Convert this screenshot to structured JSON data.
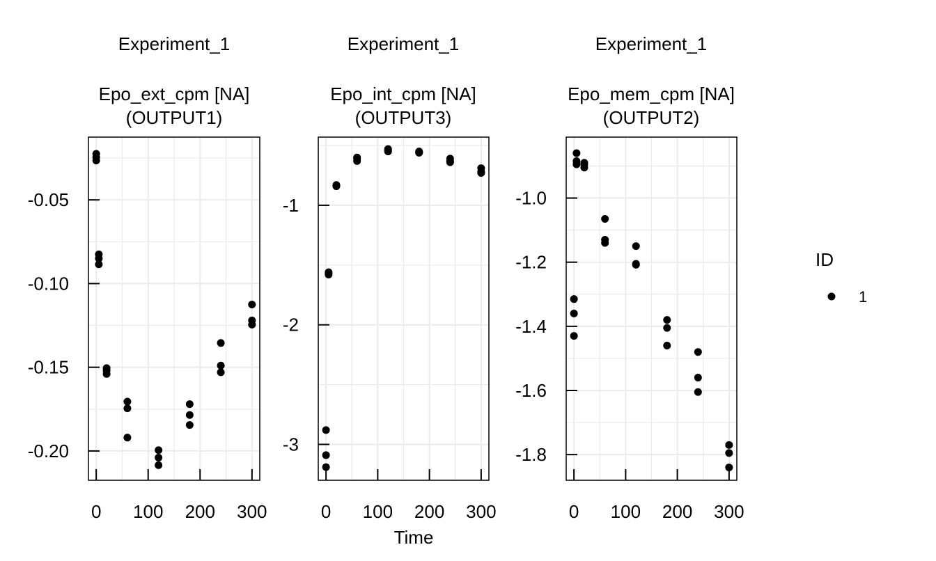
{
  "figure": {
    "xlabel": "Time",
    "legend": {
      "title": "ID",
      "entries": [
        "1"
      ],
      "placement": "right"
    }
  },
  "chart_data": [
    {
      "type": "scatter",
      "strip": "Experiment_1",
      "title_line1": "Epo_ext_cpm [NA]",
      "title_line2": "(OUTPUT1)",
      "xticks": [
        "0",
        "100",
        "200",
        "300"
      ],
      "yticks": [
        "-0.05",
        "-0.10",
        "-0.15",
        "-0.20"
      ],
      "xlim": [
        -15,
        315
      ],
      "ylim": [
        -0.2175,
        -0.0125
      ],
      "ytick_values": [
        -0.05,
        -0.1,
        -0.15,
        -0.2
      ],
      "grid": true,
      "series": [
        {
          "name": "1",
          "x": [
            0,
            0,
            0,
            5,
            5,
            5,
            20,
            20,
            20,
            60,
            60,
            60,
            120,
            120,
            120,
            180,
            180,
            180,
            240,
            240,
            240,
            300,
            300,
            300
          ],
          "y": [
            -0.0225,
            -0.0245,
            -0.0265,
            -0.0825,
            -0.085,
            -0.0885,
            -0.1505,
            -0.152,
            -0.154,
            -0.1705,
            -0.1745,
            -0.192,
            -0.1995,
            -0.204,
            -0.2085,
            -0.172,
            -0.1785,
            -0.1845,
            -0.1355,
            -0.149,
            -0.153,
            -0.1125,
            -0.122,
            -0.1245
          ]
        }
      ]
    },
    {
      "type": "scatter",
      "strip": "Experiment_1",
      "title_line1": "Epo_int_cpm [NA]",
      "title_line2": "(OUTPUT3)",
      "xticks": [
        "0",
        "100",
        "200",
        "300"
      ],
      "yticks": [
        "-1",
        "-2",
        "-3"
      ],
      "xlim": [
        -15,
        315
      ],
      "ylim": [
        -3.3,
        -0.43
      ],
      "ytick_values": [
        -1,
        -2,
        -3
      ],
      "grid": true,
      "series": [
        {
          "name": "1",
          "x": [
            0,
            0,
            0,
            5,
            5,
            5,
            20,
            20,
            20,
            60,
            60,
            60,
            120,
            120,
            120,
            180,
            180,
            180,
            240,
            240,
            240,
            300,
            300,
            300
          ],
          "y": [
            -2.88,
            -3.09,
            -3.19,
            -1.56,
            -1.58,
            -1.57,
            -0.83,
            -0.84,
            -0.84,
            -0.6,
            -0.61,
            -0.63,
            -0.53,
            -0.54,
            -0.55,
            -0.55,
            -0.56,
            -0.56,
            -0.61,
            -0.63,
            -0.64,
            -0.69,
            -0.72,
            -0.73
          ]
        }
      ]
    },
    {
      "type": "scatter",
      "strip": "Experiment_1",
      "title_line1": "Epo_mem_cpm [NA]",
      "title_line2": "(OUTPUT2)",
      "xticks": [
        "0",
        "100",
        "200",
        "300"
      ],
      "yticks": [
        "-1.0",
        "-1.2",
        "-1.4",
        "-1.6",
        "-1.8"
      ],
      "xlim": [
        -15,
        315
      ],
      "ylim": [
        -1.88,
        -0.81
      ],
      "ytick_values": [
        -1.0,
        -1.2,
        -1.4,
        -1.6,
        -1.8
      ],
      "grid": true,
      "series": [
        {
          "name": "1",
          "x": [
            0,
            0,
            0,
            5,
            5,
            5,
            20,
            20,
            20,
            60,
            60,
            60,
            120,
            120,
            120,
            180,
            180,
            180,
            240,
            240,
            240,
            300,
            300,
            300
          ],
          "y": [
            -1.315,
            -1.36,
            -1.43,
            -0.86,
            -0.885,
            -0.895,
            -0.89,
            -0.895,
            -0.905,
            -1.065,
            -1.13,
            -1.14,
            -1.15,
            -1.205,
            -1.208,
            -1.38,
            -1.405,
            -1.46,
            -1.48,
            -1.56,
            -1.605,
            -1.77,
            -1.795,
            -1.84
          ]
        }
      ]
    }
  ]
}
